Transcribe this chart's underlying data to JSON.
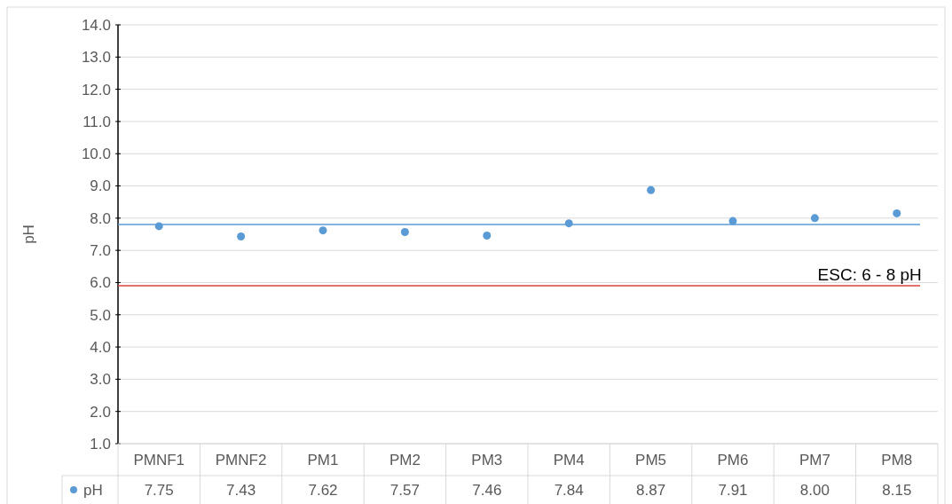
{
  "chart_data": {
    "type": "scatter",
    "ylabel": "pH",
    "categories": [
      "PMNF1",
      "PMNF2",
      "PM1",
      "PM2",
      "PM3",
      "PM4",
      "PM5",
      "PM6",
      "PM7",
      "PM8"
    ],
    "series": [
      {
        "name": "pH",
        "color": "#5b9bd5",
        "values": [
          7.75,
          7.43,
          7.62,
          7.57,
          7.46,
          7.84,
          8.87,
          7.91,
          8.0,
          8.15
        ],
        "value_labels": [
          "7.75",
          "7.43",
          "7.62",
          "7.57",
          "7.46",
          "7.84",
          "8.87",
          "7.91",
          "8.00",
          "8.15"
        ]
      }
    ],
    "ylim": [
      1,
      14
    ],
    "yticks": [
      {
        "value": 1,
        "label": "1.0"
      },
      {
        "value": 2,
        "label": "2.0"
      },
      {
        "value": 3,
        "label": "3.0"
      },
      {
        "value": 4,
        "label": "4.0"
      },
      {
        "value": 5,
        "label": "5.0"
      },
      {
        "value": 6,
        "label": "6.0"
      },
      {
        "value": 7,
        "label": "7.0"
      },
      {
        "value": 8,
        "label": "8.0"
      },
      {
        "value": 9,
        "label": "9.0"
      },
      {
        "value": 10,
        "label": "10.0"
      },
      {
        "value": 11,
        "label": "11.0"
      },
      {
        "value": 12,
        "label": "12.0"
      },
      {
        "value": 13,
        "label": "13.0"
      },
      {
        "value": 14,
        "label": "14.0"
      }
    ],
    "ref_lines": [
      {
        "axis": "y",
        "value": 7.8,
        "color": "#5b9bd5"
      },
      {
        "axis": "y",
        "value": 5.9,
        "color": "#e0403a"
      }
    ],
    "annotations": [
      "ESC: 6 - 8 pH"
    ],
    "grid": "y",
    "marker": "circle",
    "legend": "bottom"
  }
}
